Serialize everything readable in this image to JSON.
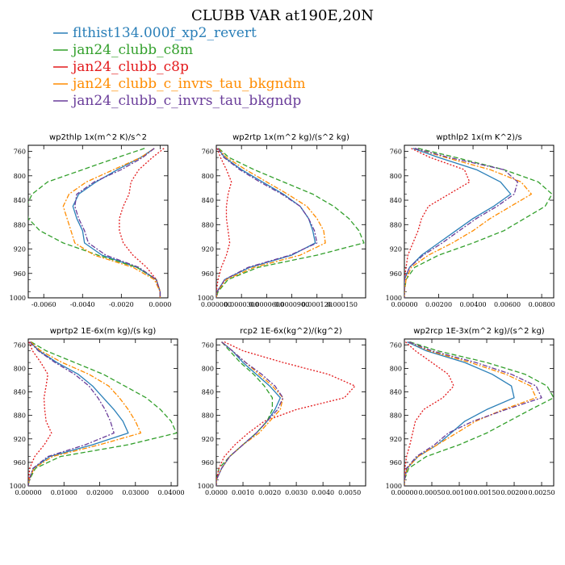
{
  "figure": {
    "title": "CLUBB VAR at190E,20N",
    "legend": [
      {
        "label": "flthist134.000f_xp2_revert",
        "color": "#2a7fb8"
      },
      {
        "label": "jan24_clubb_c8m",
        "color": "#33a02c"
      },
      {
        "label": "jan24_clubb_c8p",
        "color": "#e31a1c"
      },
      {
        "label": "jan24_clubb_c_invrs_tau_bkgndm",
        "color": "#ff8c00"
      },
      {
        "label": "jan24_clubb_c_invrs_tau_bkgndp",
        "color": "#6a3d9a"
      }
    ]
  },
  "chart_data": [
    {
      "type": "line",
      "title": "wp2thlp  1x(m^2 K)/s^2",
      "xlim": [
        -0.0068,
        0.0004
      ],
      "ylim": [
        750,
        1000
      ],
      "y_reversed": true,
      "xticks": [
        "-0.0060",
        "-0.0040",
        "-0.0020",
        "0.0000"
      ],
      "xtick_values": [
        -0.006,
        -0.004,
        -0.002,
        0.0
      ],
      "yticks": [
        "760",
        "800",
        "840",
        "880",
        "920",
        "960",
        "1000"
      ],
      "y": [
        755,
        770,
        790,
        810,
        830,
        850,
        870,
        890,
        910,
        930,
        950,
        970,
        990,
        1000
      ],
      "series": [
        {
          "color": "#2a7fb8",
          "dash": "",
          "values": [
            -0.0003,
            -0.001,
            -0.0022,
            -0.0033,
            -0.0042,
            -0.0045,
            -0.0043,
            -0.004,
            -0.0039,
            -0.003,
            -0.0012,
            -0.0002,
            0.0,
            0.0
          ]
        },
        {
          "color": "#33a02c",
          "dash": "6,3",
          "values": [
            -0.0008,
            -0.0022,
            -0.004,
            -0.0058,
            -0.0066,
            -0.0069,
            -0.0068,
            -0.0062,
            -0.005,
            -0.0032,
            -0.0012,
            -0.0002,
            0.0,
            0.0
          ]
        },
        {
          "color": "#e31a1c",
          "dash": "2,2",
          "values": [
            0.0002,
            -0.0004,
            -0.0011,
            -0.0015,
            -0.0016,
            -0.0019,
            -0.0021,
            -0.0021,
            -0.0019,
            -0.0014,
            -0.0007,
            -0.0002,
            0.0,
            0.0
          ]
        },
        {
          "color": "#ff8c00",
          "dash": "6,2,2,2",
          "values": [
            -0.0003,
            -0.001,
            -0.0024,
            -0.0038,
            -0.0047,
            -0.005,
            -0.0048,
            -0.0046,
            -0.0044,
            -0.0034,
            -0.0014,
            -0.0003,
            0.0,
            0.0
          ]
        },
        {
          "color": "#6a3d9a",
          "dash": "6,2,2,2",
          "values": [
            -0.0003,
            -0.0009,
            -0.002,
            -0.0034,
            -0.0043,
            -0.0044,
            -0.0042,
            -0.0039,
            -0.0037,
            -0.0028,
            -0.0011,
            -0.0002,
            0.0,
            0.0
          ]
        }
      ]
    },
    {
      "type": "line",
      "title": "wp2rtp  1x(m^2 kg)/(s^2 kg)",
      "xlim": [
        0.0,
        0.000178
      ],
      "ylim": [
        750,
        1000
      ],
      "y_reversed": true,
      "xticks": [
        "0.000000",
        "0.0000300",
        "0.0000600",
        "0.0000900",
        "0.000120",
        "0.000150"
      ],
      "xtick_values": [
        0.0,
        3e-05,
        6e-05,
        9e-05,
        0.00012,
        0.00015
      ],
      "yticks": [
        "760",
        "800",
        "840",
        "880",
        "920",
        "960",
        "1000"
      ],
      "y": [
        755,
        770,
        790,
        810,
        830,
        850,
        870,
        890,
        910,
        930,
        950,
        970,
        990,
        1000
      ],
      "series": [
        {
          "color": "#2a7fb8",
          "dash": "",
          "values": [
            2e-06,
            1e-05,
            3e-05,
            5.5e-05,
            8e-05,
            0.0001,
            0.00011,
            0.000115,
            0.000118,
            9e-05,
            4e-05,
            1e-05,
            1e-06,
            0.0
          ]
        },
        {
          "color": "#33a02c",
          "dash": "6,3",
          "values": [
            3e-06,
            1.5e-05,
            4.5e-05,
            8e-05,
            0.000115,
            0.00014,
            0.000158,
            0.00017,
            0.000176,
            0.00012,
            5e-05,
            1.4e-05,
            2e-06,
            0.0
          ]
        },
        {
          "color": "#e31a1c",
          "dash": "2,2",
          "values": [
            1e-06,
            5e-06,
            1.2e-05,
            1.8e-05,
            1.4e-05,
            1.2e-05,
            1.2e-05,
            1.4e-05,
            1.6e-05,
            1.2e-05,
            6e-06,
            2e-06,
            0.0,
            0.0
          ]
        },
        {
          "color": "#ff8c00",
          "dash": "6,2,2,2",
          "values": [
            2e-06,
            1.2e-05,
            3.5e-05,
            6e-05,
            8.5e-05,
            0.000108,
            0.00012,
            0.000128,
            0.00013,
            0.0001,
            4.5e-05,
            1.2e-05,
            1e-06,
            0.0
          ]
        },
        {
          "color": "#6a3d9a",
          "dash": "6,2,2,2",
          "values": [
            2e-06,
            9e-06,
            2.8e-05,
            5.2e-05,
            7.8e-05,
            0.0001,
            0.00011,
            0.000117,
            0.00012,
            8.8e-05,
            3.8e-05,
            1e-05,
            1e-06,
            0.0
          ]
        }
      ]
    },
    {
      "type": "line",
      "title": "wpthlp2  1x(m K^2)/s",
      "xlim": [
        0.0,
        0.0087
      ],
      "ylim": [
        750,
        1000
      ],
      "y_reversed": true,
      "xticks": [
        "0.00000",
        "0.00200",
        "0.00400",
        "0.00600",
        "0.00800"
      ],
      "xtick_values": [
        0.0,
        0.002,
        0.004,
        0.006,
        0.008
      ],
      "yticks": [
        "760",
        "800",
        "840",
        "880",
        "920",
        "960",
        "1000"
      ],
      "y": [
        755,
        770,
        790,
        810,
        830,
        850,
        870,
        890,
        910,
        930,
        950,
        970,
        990,
        1000
      ],
      "series": [
        {
          "color": "#2a7fb8",
          "dash": "",
          "values": [
            0.0005,
            0.002,
            0.0042,
            0.0056,
            0.0062,
            0.0052,
            0.004,
            0.003,
            0.002,
            0.001,
            0.0003,
            0.0,
            0.0,
            0.0
          ]
        },
        {
          "color": "#33a02c",
          "dash": "6,3",
          "values": [
            0.0008,
            0.003,
            0.0058,
            0.0078,
            0.0086,
            0.0082,
            0.007,
            0.0058,
            0.004,
            0.002,
            0.0006,
            0.0001,
            0.0,
            0.0
          ]
        },
        {
          "color": "#e31a1c",
          "dash": "2,2",
          "values": [
            0.0004,
            0.0015,
            0.0035,
            0.0038,
            0.0026,
            0.0014,
            0.001,
            0.0008,
            0.0005,
            0.0002,
            0.0001,
            0.0,
            0.0,
            0.0
          ]
        },
        {
          "color": "#ff8c00",
          "dash": "6,2,2,2",
          "values": [
            0.0006,
            0.0024,
            0.005,
            0.0068,
            0.0074,
            0.0062,
            0.005,
            0.004,
            0.0028,
            0.0014,
            0.0004,
            0.0001,
            0.0,
            0.0
          ]
        },
        {
          "color": "#6a3d9a",
          "dash": "6,2,2,2",
          "values": [
            0.0006,
            0.0026,
            0.0058,
            0.0066,
            0.0064,
            0.0054,
            0.0042,
            0.0032,
            0.0022,
            0.0011,
            0.0003,
            0.0,
            0.0,
            0.0
          ]
        }
      ]
    },
    {
      "type": "line",
      "title": "wprtp2  1E-6x(m kg)/(s kg)",
      "xlim": [
        0.0,
        0.0418
      ],
      "ylim": [
        750,
        1000
      ],
      "y_reversed": true,
      "xticks": [
        "0.00000",
        "0.01000",
        "0.02000",
        "0.03000",
        "0.04000"
      ],
      "xtick_values": [
        0.0,
        0.01,
        0.02,
        0.03,
        0.04
      ],
      "yticks": [
        "760",
        "800",
        "840",
        "880",
        "920",
        "960",
        "1000"
      ],
      "y": [
        755,
        770,
        790,
        810,
        830,
        850,
        870,
        890,
        910,
        930,
        950,
        970,
        990,
        1000
      ],
      "series": [
        {
          "color": "#2a7fb8",
          "dash": "",
          "values": [
            0.0005,
            0.003,
            0.008,
            0.014,
            0.018,
            0.021,
            0.024,
            0.0265,
            0.028,
            0.018,
            0.006,
            0.0015,
            0.0002,
            0.0
          ]
        },
        {
          "color": "#33a02c",
          "dash": "6,3",
          "values": [
            0.0008,
            0.005,
            0.013,
            0.021,
            0.027,
            0.033,
            0.037,
            0.04,
            0.0415,
            0.028,
            0.009,
            0.002,
            0.0003,
            0.0
          ]
        },
        {
          "color": "#e31a1c",
          "dash": "2,2",
          "values": [
            0.0002,
            0.0012,
            0.0035,
            0.0055,
            0.005,
            0.0044,
            0.0046,
            0.005,
            0.0065,
            0.0045,
            0.0018,
            0.0004,
            0.0001,
            0.0
          ]
        },
        {
          "color": "#ff8c00",
          "dash": "6,2,2,2",
          "values": [
            0.0006,
            0.0035,
            0.0095,
            0.017,
            0.0225,
            0.0255,
            0.028,
            0.03,
            0.0315,
            0.02,
            0.0068,
            0.0016,
            0.0002,
            0.0
          ]
        },
        {
          "color": "#6a3d9a",
          "dash": "6,2,2,2",
          "values": [
            0.0004,
            0.0028,
            0.0075,
            0.013,
            0.017,
            0.0195,
            0.0215,
            0.023,
            0.024,
            0.016,
            0.0055,
            0.0013,
            0.0002,
            0.0
          ]
        }
      ]
    },
    {
      "type": "line",
      "title": "rcp2  1E-6x(kg^2)/(kg^2)",
      "xlim": [
        0.0,
        0.0056
      ],
      "ylim": [
        750,
        1000
      ],
      "y_reversed": true,
      "xticks": [
        "0.0000",
        "0.0010",
        "0.0020",
        "0.0030",
        "0.0040",
        "0.0050"
      ],
      "xtick_values": [
        0.0,
        0.001,
        0.002,
        0.003,
        0.004,
        0.005
      ],
      "yticks": [
        "760",
        "800",
        "840",
        "880",
        "920",
        "960",
        "1000"
      ],
      "y": [
        755,
        770,
        790,
        810,
        830,
        850,
        870,
        890,
        910,
        930,
        950,
        970,
        990,
        1000
      ],
      "series": [
        {
          "color": "#2a7fb8",
          "dash": "",
          "values": [
            0.0002,
            0.0006,
            0.001,
            0.0015,
            0.002,
            0.0024,
            0.0022,
            0.0019,
            0.0015,
            0.001,
            0.0005,
            0.0002,
            0.0,
            0.0
          ]
        },
        {
          "color": "#33a02c",
          "dash": "6,3",
          "values": [
            0.0002,
            0.0005,
            0.0009,
            0.0014,
            0.0018,
            0.0021,
            0.0021,
            0.0019,
            0.0015,
            0.001,
            0.0005,
            0.0001,
            0.0,
            0.0
          ]
        },
        {
          "color": "#e31a1c",
          "dash": "2,2",
          "values": [
            0.0003,
            0.001,
            0.0025,
            0.0042,
            0.0052,
            0.0048,
            0.003,
            0.0018,
            0.0012,
            0.0007,
            0.0003,
            0.0001,
            0.0,
            0.0
          ]
        },
        {
          "color": "#ff8c00",
          "dash": "6,2,2,2",
          "values": [
            0.0002,
            0.0006,
            0.0011,
            0.0016,
            0.0021,
            0.0025,
            0.0024,
            0.002,
            0.0016,
            0.001,
            0.0005,
            0.0002,
            0.0,
            0.0
          ]
        },
        {
          "color": "#6a3d9a",
          "dash": "6,2,2,2",
          "values": [
            0.0002,
            0.0006,
            0.0011,
            0.0017,
            0.0022,
            0.0025,
            0.0023,
            0.0019,
            0.0015,
            0.001,
            0.0005,
            0.0002,
            0.0,
            0.0
          ]
        }
      ]
    },
    {
      "type": "line",
      "title": "wp2rcp  1E-3x(m^2 kg)/(s^2 kg)",
      "xlim": [
        0.0,
        0.00272
      ],
      "ylim": [
        750,
        1000
      ],
      "y_reversed": true,
      "xticks": [
        "0.00000",
        "0.00050",
        "0.00100",
        "0.00150",
        "0.00200",
        "0.00250"
      ],
      "xtick_values": [
        0.0,
        0.0005,
        0.001,
        0.0015,
        0.002,
        0.0025
      ],
      "yticks": [
        "760",
        "800",
        "840",
        "880",
        "920",
        "960",
        "1000"
      ],
      "y": [
        755,
        770,
        790,
        810,
        830,
        850,
        870,
        890,
        910,
        930,
        950,
        970,
        990,
        1000
      ],
      "series": [
        {
          "color": "#2a7fb8",
          "dash": "",
          "values": [
            5e-05,
            0.0004,
            0.0011,
            0.0016,
            0.00195,
            0.002,
            0.0015,
            0.0011,
            0.00085,
            0.0006,
            0.00025,
            5e-05,
            0.0,
            0.0
          ]
        },
        {
          "color": "#33a02c",
          "dash": "6,3",
          "values": [
            0.0001,
            0.0006,
            0.0015,
            0.0022,
            0.0026,
            0.00272,
            0.0023,
            0.0019,
            0.0015,
            0.001,
            0.0004,
            8e-05,
            0.0,
            0.0
          ]
        },
        {
          "color": "#e31a1c",
          "dash": "2,2",
          "values": [
            2e-05,
            0.0002,
            0.0005,
            0.0008,
            0.0009,
            0.0007,
            0.00035,
            0.0002,
            0.00015,
            0.0001,
            4e-05,
            1e-05,
            0.0,
            0.0
          ]
        },
        {
          "color": "#ff8c00",
          "dash": "6,2,2,2",
          "values": [
            8e-05,
            0.00045,
            0.0012,
            0.00185,
            0.0023,
            0.0024,
            0.0018,
            0.0013,
            0.00095,
            0.0006,
            0.00025,
            5e-05,
            0.0,
            0.0
          ]
        },
        {
          "color": "#6a3d9a",
          "dash": "6,2,2,2",
          "values": [
            8e-05,
            0.0005,
            0.0013,
            0.00195,
            0.0024,
            0.0025,
            0.00185,
            0.00125,
            0.0008,
            0.00055,
            0.00022,
            4e-05,
            0.0,
            0.0
          ]
        }
      ]
    }
  ]
}
